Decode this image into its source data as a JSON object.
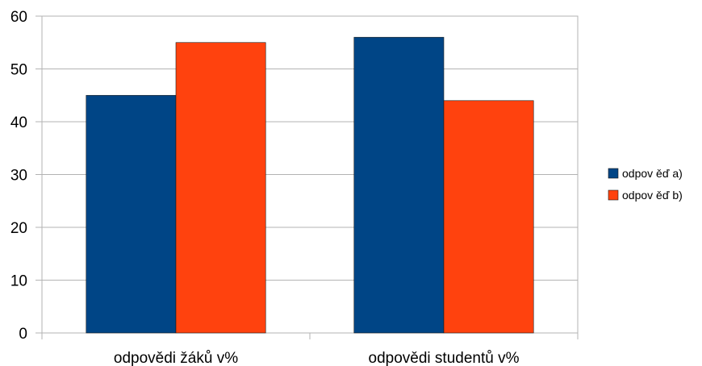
{
  "chart_data": {
    "type": "bar",
    "categories": [
      "odpovědi žáků v%",
      "odpovědi studentů v%"
    ],
    "series": [
      {
        "name": "odpov ěď a)",
        "values": [
          45,
          56
        ],
        "color": "#004586"
      },
      {
        "name": "odpov ěď b)",
        "values": [
          55,
          44
        ],
        "color": "#ff420e"
      }
    ],
    "ylim": [
      0,
      60
    ],
    "yticks": [
      0,
      10,
      20,
      30,
      40,
      50,
      60
    ],
    "grid": true,
    "legend": "right"
  }
}
